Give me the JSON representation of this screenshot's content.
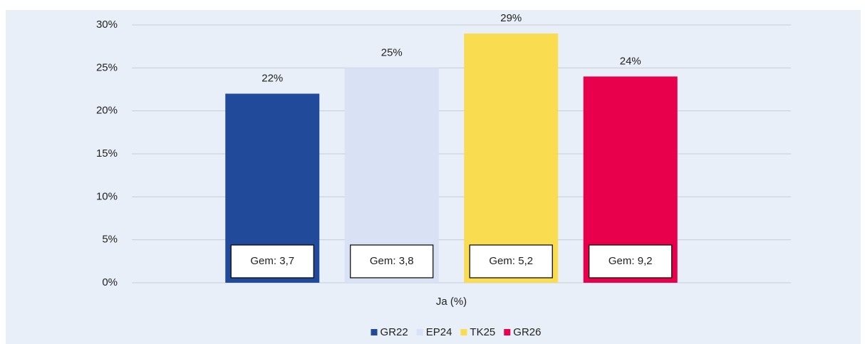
{
  "chart_data": {
    "type": "bar",
    "categories": [
      "Ja (%)"
    ],
    "series": [
      {
        "name": "GR22",
        "color": "#214a9a",
        "values": [
          22
        ],
        "value_labels": [
          "22%"
        ],
        "note": "Gem: 3,7"
      },
      {
        "name": "EP24",
        "color": "#d9e1f4",
        "values": [
          25
        ],
        "value_labels": [
          "25%"
        ],
        "note": "Gem: 3,8"
      },
      {
        "name": "TK25",
        "color": "#f9dc50",
        "values": [
          29
        ],
        "value_labels": [
          "29%"
        ],
        "note": "Gem: 5,2"
      },
      {
        "name": "GR26",
        "color": "#e8004c",
        "values": [
          24
        ],
        "value_labels": [
          "24%"
        ],
        "note": "Gem: 9,2"
      }
    ],
    "ylim": [
      0,
      30
    ],
    "yticks": [
      {
        "value": 0,
        "label": "0%"
      },
      {
        "value": 5,
        "label": "5%"
      },
      {
        "value": 10,
        "label": "10%"
      },
      {
        "value": 15,
        "label": "15%"
      },
      {
        "value": 20,
        "label": "20%"
      },
      {
        "value": 25,
        "label": "25%"
      },
      {
        "value": 30,
        "label": "30%"
      }
    ],
    "grid": true,
    "legend": "bottom"
  }
}
